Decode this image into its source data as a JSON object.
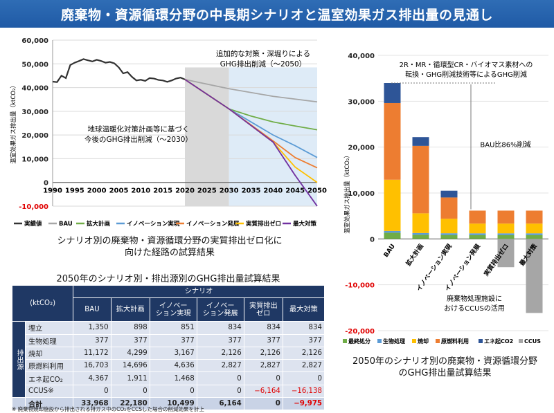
{
  "title": "廃棄物・資源循環分野の中長期シナリオと温室効果ガス排出量の見通し",
  "colors": {
    "banner": "#1f5aa6",
    "table_header": "#1f3864"
  },
  "left_chart": {
    "caption": "シナリオ別の廃棄物・資源循環分野の実質排出ゼロ化に向けた経路の試算結果",
    "caption_line1": "シナリオ別の廃棄物・資源循環分野の実質排出ゼロ化に",
    "caption_line2": "向けた経路の試算結果",
    "annotation_plan_line1": "地球温暖化対策計画等に基づく",
    "annotation_plan_line2": "今後のGHG排出削減（～2030）",
    "annotation_extra_line1": "追加的な対策・深堀りによる",
    "annotation_extra_line2": "GHG排出削減（～2050）"
  },
  "right_chart": {
    "caption_line1": "2050年のシナリオ別の廃棄物・資源循環分野",
    "caption_line2": "のGHG排出量試算結果",
    "annotation_top_line1": "2R・MR・循環型CR・バイオマス素材への",
    "annotation_top_line2": "転換・GHG削減技術等によるGHG削減",
    "annotation_bau": "BAU比86%削減",
    "annotation_ccus_line1": "廃棄物処理施設に",
    "annotation_ccus_line2": "おけるCCUSの活用"
  },
  "chart_data": [
    {
      "type": "line",
      "ylabel": "温室効果ガス排出量（ktCO₂）",
      "xlim": [
        1990,
        2050
      ],
      "ylim": [
        -10000,
        60000
      ],
      "xticks": [
        "1990",
        "1995",
        "2000",
        "2005",
        "2010",
        "2015",
        "2020",
        "2025",
        "2030",
        "2035",
        "2040",
        "2045",
        "2050"
      ],
      "yticks": [
        "60,000",
        "50,000",
        "40,000",
        "30,000",
        "20,000",
        "10,000",
        "0",
        "-10,000"
      ],
      "shaded_periods": [
        {
          "from": 2020,
          "to": 2030,
          "color": "#d9d9d9"
        },
        {
          "from": 2030,
          "to": 2050,
          "color": "#deebf7"
        }
      ],
      "legend_position": "bottom",
      "series": [
        {
          "name": "実績値",
          "color": "#333333",
          "x": [
            1990,
            1991,
            1992,
            1993,
            1994,
            1995,
            1996,
            1997,
            1998,
            1999,
            2000,
            2001,
            2002,
            2003,
            2004,
            2005,
            2006,
            2007,
            2008,
            2009,
            2010,
            2011,
            2012,
            2013,
            2014,
            2015,
            2016,
            2017,
            2018,
            2019,
            2020
          ],
          "y": [
            42500,
            42300,
            45000,
            44000,
            49500,
            50500,
            51200,
            52000,
            51500,
            51000,
            51700,
            51200,
            50500,
            50800,
            50200,
            48500,
            46000,
            46500,
            44500,
            43000,
            43300,
            42800,
            44000,
            43800,
            43200,
            43000,
            42400,
            43000,
            43800,
            44200,
            43400
          ]
        },
        {
          "name": "BAU",
          "color": "#a6a6a6",
          "x": [
            2020,
            2030,
            2040,
            2050
          ],
          "y": [
            43400,
            39500,
            36300,
            33968
          ]
        },
        {
          "name": "拡大計画",
          "color": "#70ad47",
          "x": [
            2020,
            2030,
            2035,
            2040,
            2045,
            2050
          ],
          "y": [
            43400,
            31000,
            28000,
            25500,
            23800,
            22180
          ]
        },
        {
          "name": "イノベーション実現",
          "color": "#5b9bd5",
          "x": [
            2020,
            2030,
            2040,
            2045,
            2050
          ],
          "y": [
            43400,
            31000,
            20000,
            15500,
            10499
          ]
        },
        {
          "name": "イノベーション発展",
          "color": "#ed7d31",
          "x": [
            2020,
            2030,
            2040,
            2045,
            2050
          ],
          "y": [
            43400,
            31000,
            17500,
            10500,
            6164
          ]
        },
        {
          "name": "実質排出ゼロ",
          "color": "#ffc000",
          "x": [
            2020,
            2030,
            2040,
            2045,
            2050
          ],
          "y": [
            43400,
            31000,
            17000,
            6500,
            0
          ]
        },
        {
          "name": "最大対策",
          "color": "#7030a0",
          "x": [
            2020,
            2030,
            2040,
            2045,
            2050
          ],
          "y": [
            43400,
            31000,
            17000,
            3000,
            -9975
          ]
        }
      ]
    },
    {
      "type": "bar",
      "stacked": true,
      "ylabel": "温室効果ガス排出量（ktCO₂）",
      "ylim": [
        -20000,
        40000
      ],
      "yticks": [
        "40,000",
        "30,000",
        "20,000",
        "10,000",
        "0",
        "-10,000",
        "-20,000"
      ],
      "categories": [
        "BAU",
        "拡大計画",
        "イノベーション実現",
        "イノベーション発展",
        "実質排出ゼロ",
        "最大対策"
      ],
      "legend_position": "bottom",
      "series": [
        {
          "name": "最終処分",
          "color": "#70ad47",
          "values": [
            1350,
            898,
            851,
            834,
            834,
            834
          ]
        },
        {
          "name": "生物処理",
          "color": "#5b9bd5",
          "values": [
            377,
            377,
            377,
            377,
            377,
            377
          ]
        },
        {
          "name": "焼却",
          "color": "#ffc000",
          "values": [
            11172,
            4299,
            3167,
            2126,
            2126,
            2126
          ]
        },
        {
          "name": "原燃料利用",
          "color": "#ed7d31",
          "values": [
            16703,
            14696,
            4636,
            2827,
            2827,
            2827
          ]
        },
        {
          "name": "エネ起CO2",
          "color": "#2e5597",
          "values": [
            4367,
            1911,
            1468,
            0,
            0,
            0
          ]
        },
        {
          "name": "CCUS",
          "color": "#a6a6a6",
          "values": [
            0,
            0,
            0,
            0,
            -6164,
            -16138
          ]
        }
      ]
    },
    {
      "type": "table",
      "title": "2050年のシナリオ別・排出源別のGHG排出量試算結果",
      "unit": "(ktCO₂)",
      "group_header": "シナリオ",
      "side_label": "排出源",
      "columns": [
        "BAU",
        "拡大計画",
        "イノベー\nション実現",
        "イノベー\nション発展",
        "実質排出\nゼロ",
        "最大対策"
      ],
      "rows": [
        {
          "label": "埋立",
          "values": [
            "1,350",
            "898",
            "851",
            "834",
            "834",
            "834"
          ]
        },
        {
          "label": "生物処理",
          "values": [
            "377",
            "377",
            "377",
            "377",
            "377",
            "377"
          ]
        },
        {
          "label": "焼却",
          "values": [
            "11,172",
            "4,299",
            "3,167",
            "2,126",
            "2,126",
            "2,126"
          ]
        },
        {
          "label": "原燃料利用",
          "values": [
            "16,703",
            "14,696",
            "4,636",
            "2,827",
            "2,827",
            "2,827"
          ]
        },
        {
          "label": "エネ起CO₂",
          "values": [
            "4,367",
            "1,911",
            "1,468",
            "0",
            "0",
            "0"
          ]
        },
        {
          "label": "CCUS※",
          "values": [
            "0",
            "0",
            "0",
            "0",
            "−6,164",
            "−16,138"
          ]
        },
        {
          "label": "合計",
          "values": [
            "33,968",
            "22,180",
            "10,499",
            "6,164",
            "0",
            "−9,975"
          ]
        }
      ],
      "note": "※ 廃棄物焼却施設から排出される排ガス中のCO₂をCCSした場合の削減効果を計上"
    }
  ]
}
